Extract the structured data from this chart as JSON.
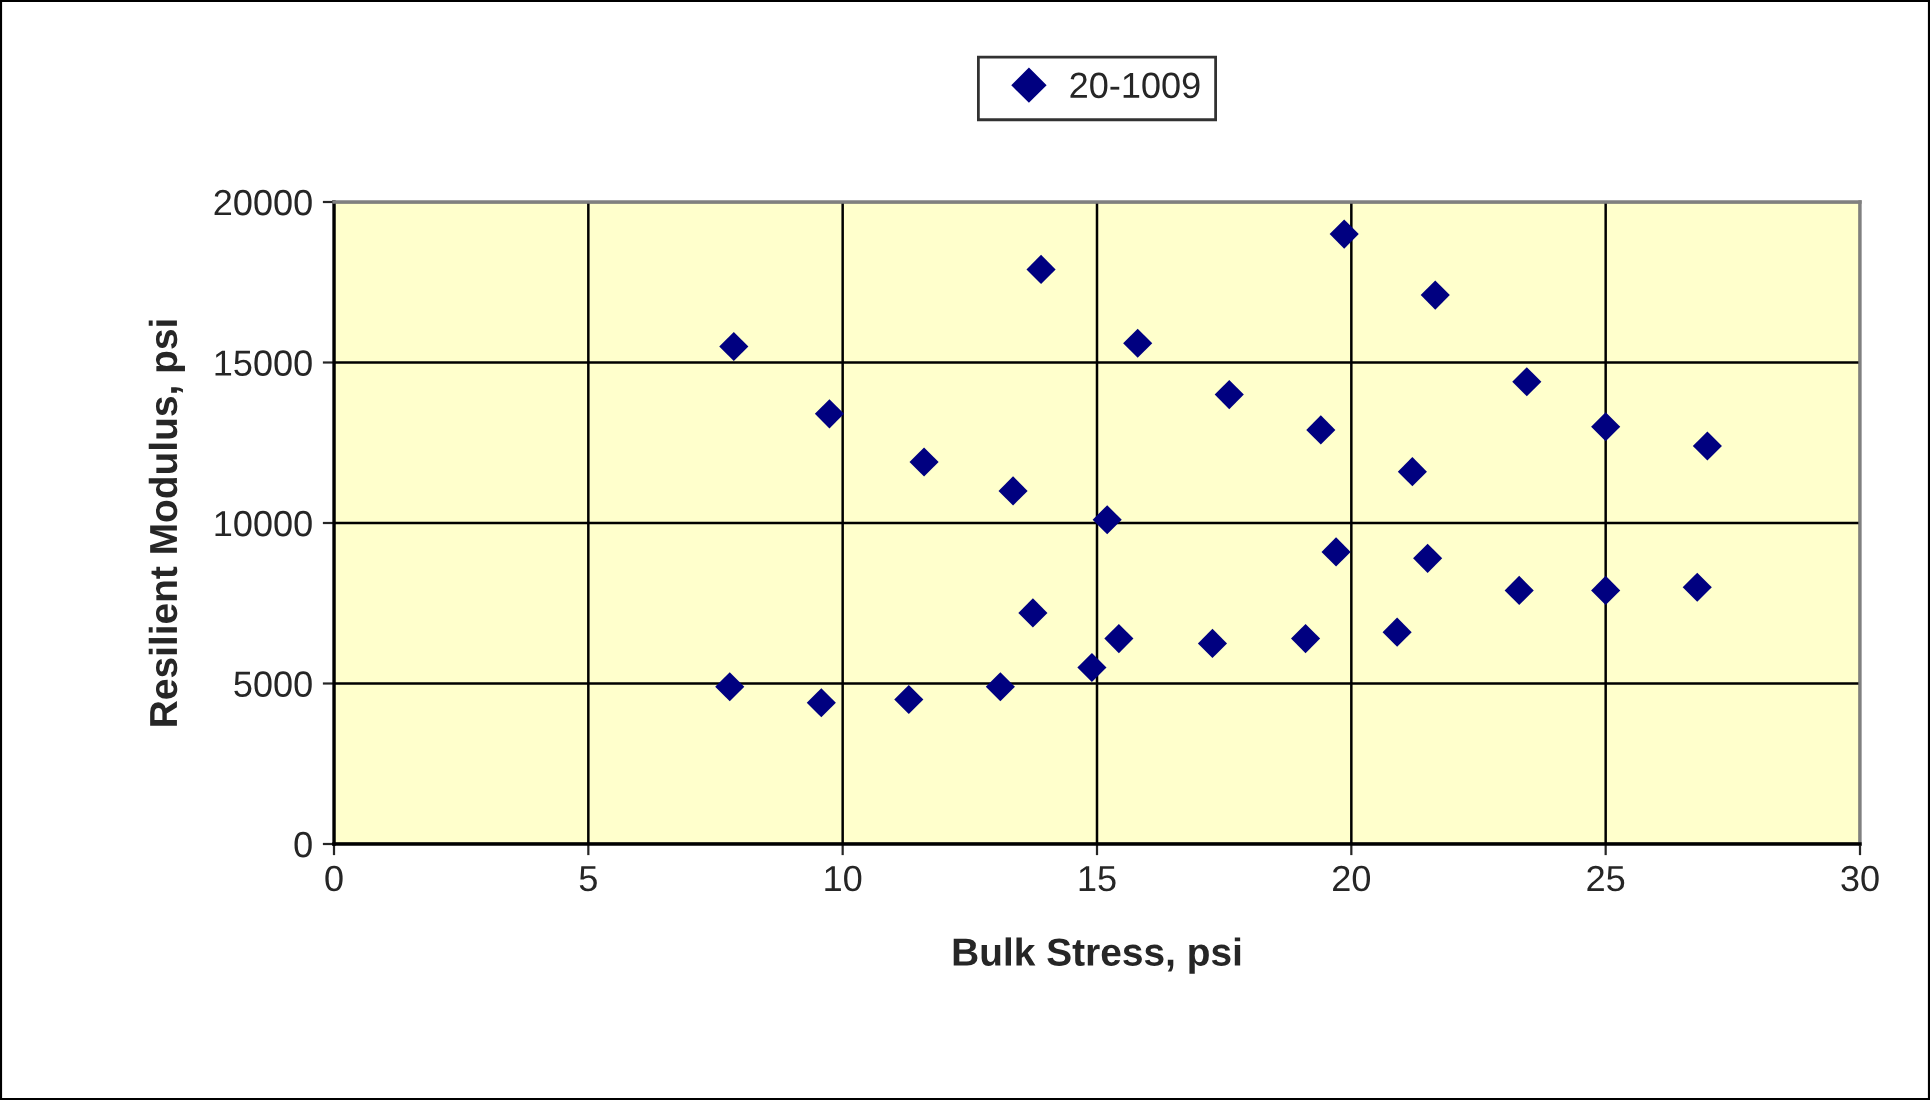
{
  "chart_data": {
    "type": "scatter",
    "xlabel": "Bulk Stress, psi",
    "ylabel": "Resilient Modulus, psi",
    "xlim": [
      0,
      30
    ],
    "xticks": [
      0,
      5,
      10,
      15,
      20,
      25,
      30
    ],
    "ylim": [
      0,
      20000
    ],
    "yticks": [
      0,
      5000,
      10000,
      15000,
      20000
    ],
    "grid": true,
    "legend": "top",
    "marker": "diamond",
    "series": [
      {
        "name": "20-1009",
        "color": "#000080",
        "x": [
          7.86,
          7.78,
          9.74,
          9.58,
          11.6,
          11.3,
          13.35,
          13.1,
          13.9,
          13.74,
          14.9,
          15.2,
          15.43,
          15.8,
          17.27,
          17.6,
          19.1,
          19.4,
          19.7,
          19.86,
          20.9,
          21.2,
          21.5,
          21.65,
          23.3,
          23.45,
          25.0,
          25.0,
          26.8,
          27.0
        ],
        "values": [
          15500,
          4900,
          13400,
          4400,
          11900,
          4500,
          11000,
          4900,
          17900,
          7200,
          5500,
          10100,
          6400,
          15600,
          6250,
          14000,
          6400,
          12900,
          9100,
          19000,
          6600,
          11600,
          8900,
          17100,
          7900,
          14400,
          7900,
          13000,
          8000,
          12400
        ]
      }
    ]
  }
}
